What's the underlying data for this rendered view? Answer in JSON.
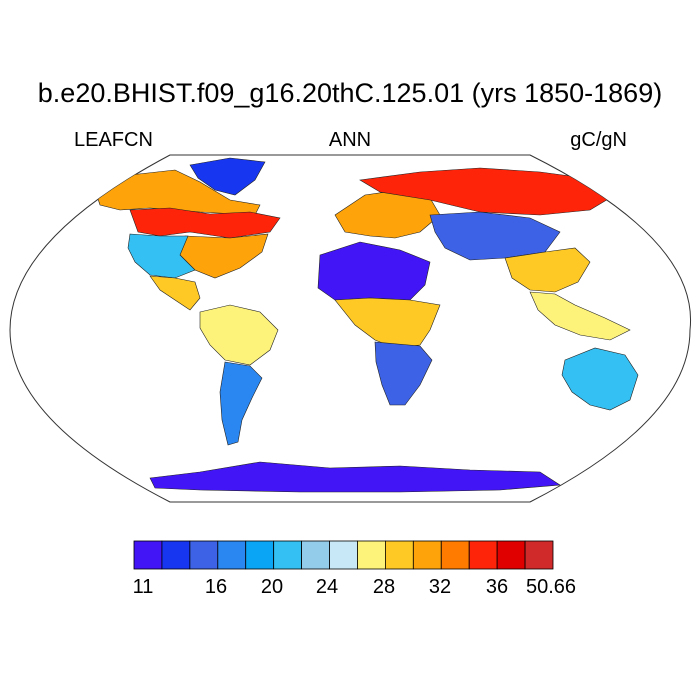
{
  "title": "b.e20.BHIST.f09_g16.20thC.125.01 (yrs 1850-1869)",
  "left_label": "LEAFCN",
  "center_label": "ANN",
  "right_label": "gC/gN",
  "colorbar": {
    "colors": [
      "#4215f7",
      "#1736f0",
      "#3d62e5",
      "#2a86f0",
      "#0ba5f5",
      "#34c0f2",
      "#93cbea",
      "#c8e8f7",
      "#fdf27a",
      "#fec825",
      "#fea30a",
      "#fe7b00",
      "#fe2409",
      "#e00000",
      "#d02a2a"
    ],
    "labels": [
      {
        "text": "11",
        "slot": 0
      },
      {
        "text": "16",
        "slot": 2
      },
      {
        "text": "20",
        "slot": 3
      },
      {
        "text": "24",
        "slot": 4
      },
      {
        "text": "28",
        "slot": 5
      },
      {
        "text": "32",
        "slot": 6
      },
      {
        "text": "36",
        "slot": 7
      },
      {
        "text": "50.66",
        "slot": 8
      }
    ]
  },
  "regions": [
    {
      "name": "greenland",
      "color": "#1736f0"
    },
    {
      "name": "canada-north",
      "color": "#fea30a"
    },
    {
      "name": "canada-boreal",
      "color": "#fe2409"
    },
    {
      "name": "usa-east",
      "color": "#fea30a"
    },
    {
      "name": "usa-west",
      "color": "#34c0f2"
    },
    {
      "name": "mexico",
      "color": "#fec825"
    },
    {
      "name": "amazon",
      "color": "#fdf27a"
    },
    {
      "name": "south-america-south",
      "color": "#2a86f0"
    },
    {
      "name": "sahara",
      "color": "#4215f7"
    },
    {
      "name": "sahel-africa",
      "color": "#fec825"
    },
    {
      "name": "southern-africa",
      "color": "#3d62e5"
    },
    {
      "name": "europe",
      "color": "#fea30a"
    },
    {
      "name": "siberia",
      "color": "#fe2409"
    },
    {
      "name": "central-asia",
      "color": "#3d62e5"
    },
    {
      "name": "china",
      "color": "#fec825"
    },
    {
      "name": "southeast-asia",
      "color": "#fdf27a"
    },
    {
      "name": "australia",
      "color": "#34c0f2"
    },
    {
      "name": "antarctica",
      "color": "#4215f7"
    }
  ]
}
